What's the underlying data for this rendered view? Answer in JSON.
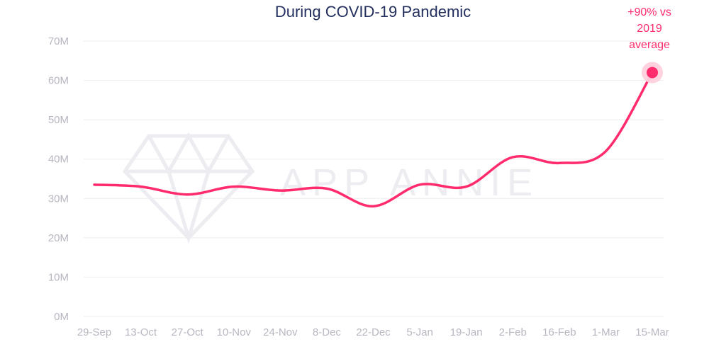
{
  "chart_data": {
    "type": "line",
    "title": "During COVID-19 Pandemic",
    "watermark": "APP ANNIE",
    "x": [
      "29-Sep",
      "13-Oct",
      "27-Oct",
      "10-Nov",
      "24-Nov",
      "8-Dec",
      "22-Dec",
      "5-Jan",
      "19-Jan",
      "2-Feb",
      "16-Feb",
      "1-Mar",
      "15-Mar"
    ],
    "x_tick_labels": [
      "29-Sep",
      "13-Oct",
      "27-Oct",
      "10-Nov",
      "24-Nov",
      "8-Dec",
      "22-Dec",
      "5-Jan",
      "19-Jan",
      "2-Feb",
      "16-Feb",
      "1-Mar",
      "15-Mar"
    ],
    "y_tick_labels": [
      "0M",
      "10M",
      "20M",
      "30M",
      "40M",
      "50M",
      "60M",
      "70M"
    ],
    "ylim": [
      0,
      70
    ],
    "series": [
      {
        "values": [
          33.5,
          33.0,
          31.0,
          33.0,
          32.0,
          32.5,
          28.0,
          33.5,
          33.0,
          40.5,
          39.0,
          42.0,
          62.0
        ]
      }
    ],
    "annotations": [
      {
        "lines": [
          "+90% vs",
          "2019",
          "average"
        ],
        "x": "15-Mar",
        "y": 62.0
      }
    ],
    "grid": true,
    "colors": {
      "line": "#ff2b6d",
      "title": "#23305f",
      "ticks": "#b7b7c2",
      "grid": "#eeeeef",
      "watermark": "#ececf1",
      "halo": "#ffd0de"
    }
  }
}
